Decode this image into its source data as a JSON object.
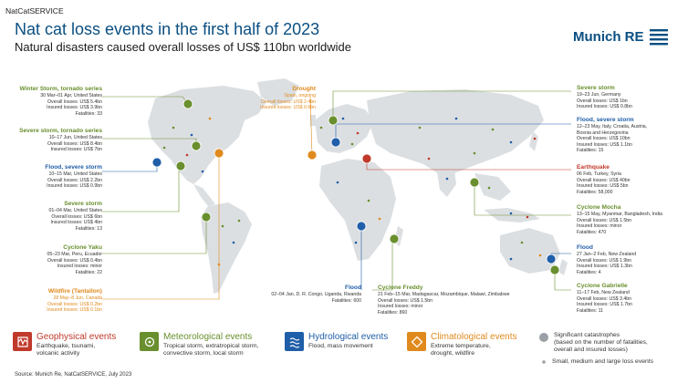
{
  "header": {
    "topbar": "NatCatSERVICE",
    "title": "Nat cat loss events in the first half of 2023",
    "subtitle": "Natural disasters caused overall losses of US$ 110bn worldwide",
    "logo_text": "Munich RE"
  },
  "events": [
    {
      "id": "winter-storm",
      "category": "met",
      "title": "Winter Storm, tornado series",
      "lines": [
        "30 Mar–01 Apr, United States",
        "Overall losses: US$ 5.4bn",
        "Insured losses: US$ 3.9bn",
        "Fatalities: 33"
      ]
    },
    {
      "id": "severe-storm-tornado",
      "category": "met",
      "title": "Severe storm, tornado series",
      "lines": [
        "10–17 Jun, United States",
        "Overall losses: US$ 8.4bn",
        "Insured losses: US$ 7bn"
      ]
    },
    {
      "id": "flood-severe-us",
      "category": "hyd",
      "title": "Flood, severe storm",
      "lines": [
        "10–15 Mar, United States",
        "Overall losses: US$ 2.2bn",
        "Insured losses: US$ 0.9bn"
      ]
    },
    {
      "id": "severe-storm-us",
      "category": "met",
      "title": "Severe storm",
      "lines": [
        "01–04 Mar, United States",
        "Overall losses: US$ 6bn",
        "Insured losses: US$ 4bn",
        "Fatalities: 13"
      ]
    },
    {
      "id": "cyclone-yaku",
      "category": "met",
      "title": "Cyclone Yaku",
      "lines": [
        "05–23 Mar, Peru, Ecuador",
        "Overall losses: US$ 0.4bn",
        "Insured losses: minor",
        "Fatalities: 22"
      ]
    },
    {
      "id": "wildfire",
      "category": "cli",
      "title": "Wildfire (Tantallon)",
      "lines": [
        "28 May–8 Jun, Canada",
        "Overall losses: US$ 0.2bn",
        "Insured losses: US$ 0.1bn"
      ]
    },
    {
      "id": "drought",
      "category": "cli",
      "title": "Drought",
      "lines": [
        "Spain, ongoing",
        "Overall losses: US$ 2.4bn",
        "Insured losses: US$ 0.6bn"
      ]
    },
    {
      "id": "flood-congo",
      "category": "hyd",
      "title": "Flood",
      "lines": [
        "02–04 Jan, D. R. Congo, Uganda, Rwanda",
        "Fatalities: 600"
      ]
    },
    {
      "id": "cyclone-freddy",
      "category": "met",
      "title": "Cyclone Freddy",
      "lines": [
        "21 Feb–15 Mar, Madagascar, Mozambique, Malawi, Zimbabwe",
        "Overall losses: US$ 1.5bn",
        "Insured losses: minor",
        "Fatalities: 860"
      ]
    },
    {
      "id": "severe-storm-de",
      "category": "met",
      "title": "Severe storm",
      "lines": [
        "19–23 Jun, Germany",
        "Overall losses: US$ 1bn",
        "Insured losses: US$ 0.8bn"
      ]
    },
    {
      "id": "flood-italy",
      "category": "hyd",
      "title": "Flood, severe storm",
      "lines": [
        "12–23 May, Italy, Croatia, Austria,",
        "Bosnia and Herzegovina",
        "Overall losses: US$ 10bn",
        "Insured losses: US$ 1.1bn",
        "Fatalities: 15"
      ]
    },
    {
      "id": "earthquake",
      "category": "geo",
      "title": "Earthquake",
      "lines": [
        "06 Feb, Turkey, Syria",
        "Overall losses: US$ 40bn",
        "Insured losses: US$ 5bn",
        "Fatalities: 58,000"
      ]
    },
    {
      "id": "cyclone-mocha",
      "category": "met",
      "title": "Cyclone Mocha",
      "lines": [
        "13–15 May, Myanmar, Bangladesh, India",
        "Overall losses: US$ 1.5bn",
        "Insured losses: minor",
        "Fatalities: 470"
      ]
    },
    {
      "id": "flood-nz",
      "category": "hyd",
      "title": "Flood",
      "lines": [
        "27 Jan–2 Feb, New Zealand",
        "Overall losses: US$ 1.9bn",
        "Insured losses: US$ 1.3bn",
        "Fatalities: 4"
      ]
    },
    {
      "id": "cyclone-gabrielle",
      "category": "met",
      "title": "Cyclone Gabrielle",
      "lines": [
        "11–17 Feb, New Zealand",
        "Overall losses: US$ 3.4bn",
        "Insured losses: US$ 1.7bn",
        "Fatalities: 11"
      ]
    }
  ],
  "legend": {
    "geo": {
      "title": "Geophysical events",
      "desc": [
        "Earthquake, tsunami,",
        "volcanic activity"
      ]
    },
    "met": {
      "title": "Meteorological events",
      "desc": [
        "Tropical storm, extratropical storm,",
        "convective storm, local storm"
      ]
    },
    "hyd": {
      "title": "Hydrological events",
      "desc": [
        "Flood, mass movement"
      ]
    },
    "cli": {
      "title": "Climatological events",
      "desc": [
        "Extreme temperature,",
        "drought, wildfire"
      ]
    },
    "significant": {
      "title": "Significant catastrophes",
      "desc": [
        "(based on the number of fatalities,",
        "overall and insured losses)"
      ]
    },
    "small": {
      "title": "Small, medium and large loss events"
    }
  },
  "footer": {
    "source": "Source: Munich Re, NatCatSERVICE, July 2023"
  },
  "colors": {
    "geophysical": "#c0392b",
    "meteorological": "#6a8f2e",
    "hydrological": "#1f5ea8",
    "climatological": "#e08a1e",
    "brand": "#0a4f82",
    "land": "#d9dde0"
  }
}
